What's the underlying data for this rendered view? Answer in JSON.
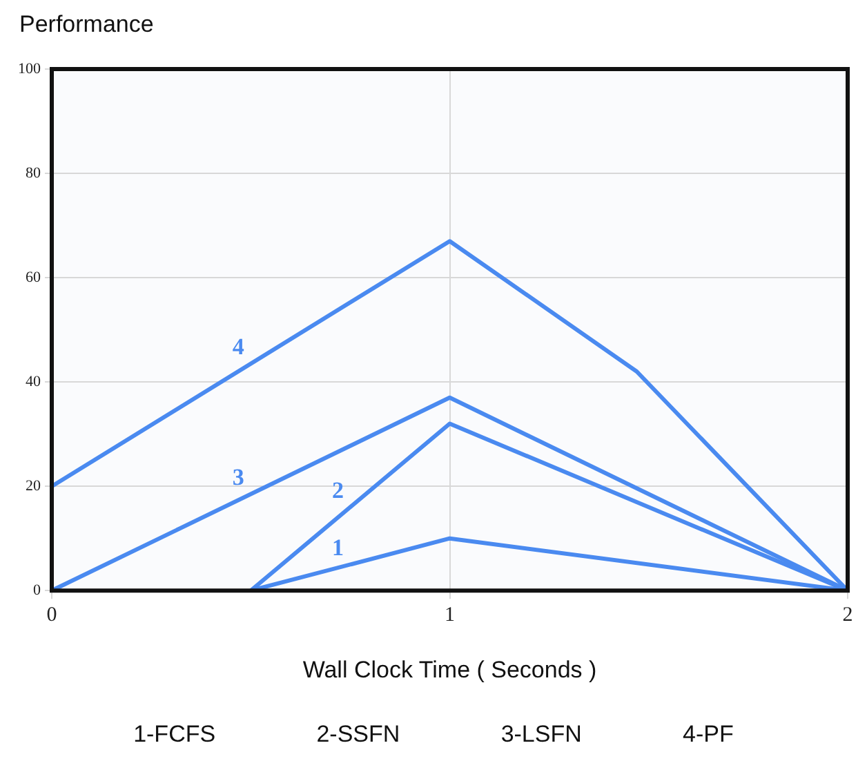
{
  "chart_data": {
    "type": "line",
    "ylabel": "Performance",
    "xlabel": "Wall Clock Time ( Seconds )",
    "xlim": [
      0,
      2
    ],
    "xticks": [
      0,
      1,
      2
    ],
    "ylim": [
      0,
      100
    ],
    "yticks": [
      0,
      20,
      40,
      60,
      80,
      100
    ],
    "grid": true,
    "legend": false,
    "marker": "none",
    "line_style": "solid",
    "series": [
      {
        "name": "1",
        "color": "#4a8af0",
        "x": [
          0.5,
          1,
          2
        ],
        "values": [
          0,
          10,
          0
        ]
      },
      {
        "name": "2",
        "color": "#4a8af0",
        "x": [
          0.5,
          1,
          2
        ],
        "values": [
          0,
          32,
          0
        ]
      },
      {
        "name": "3",
        "color": "#4a8af0",
        "x": [
          0,
          1,
          2
        ],
        "values": [
          0,
          37,
          0
        ]
      },
      {
        "name": "4",
        "color": "#4a8af0",
        "x": [
          0,
          1,
          1.47,
          2
        ],
        "values": [
          20,
          67,
          42,
          0
        ]
      }
    ],
    "annotations": [
      "1-FCFS",
      "2-SSFN",
      "3-LSFN",
      "4-PF"
    ]
  }
}
